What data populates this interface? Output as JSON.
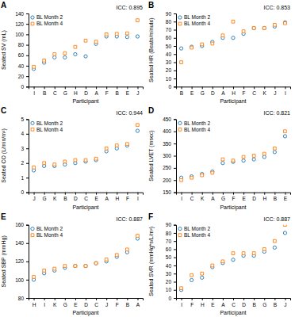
{
  "chart_data": [
    {
      "type": "scatter",
      "title": "A",
      "annotation": "ICC: 0.895",
      "x_label": "Participant",
      "y_label": "Seated SV (mL)",
      "categories": [
        "I",
        "B",
        "C",
        "G",
        "H",
        "D",
        "A",
        "F",
        "B",
        "E",
        "J"
      ],
      "series": [
        {
          "name": "BL Month 2",
          "marker": "circle",
          "values": [
            34,
            46,
            56,
            56,
            62,
            58,
            82,
            96,
            96,
            95,
            96
          ]
        },
        {
          "name": "BL Month 4",
          "marker": "square",
          "values": [
            38,
            50,
            62,
            64,
            76,
            88,
            86,
            100,
            101,
            102,
            127
          ]
        }
      ],
      "ylim": [
        0,
        140
      ],
      "yticks": [
        0,
        20,
        40,
        60,
        80,
        100,
        120,
        140
      ],
      "legend": "upper left",
      "grid": false
    },
    {
      "type": "scatter",
      "title": "B",
      "annotation": "ICC: 0.853",
      "x_label": "Participant",
      "y_label": "Seated HR (Beats/minute)",
      "categories": [
        "B",
        "E",
        "G",
        "D",
        "A",
        "H",
        "F",
        "C",
        "K",
        "J",
        "I"
      ],
      "series": [
        {
          "name": "BL Month 2",
          "marker": "circle",
          "values": [
            47,
            49,
            50,
            55,
            60,
            60,
            65,
            72,
            72,
            74,
            79
          ]
        },
        {
          "name": "BL Month 4",
          "marker": "square",
          "values": [
            30,
            48,
            52,
            53,
            63,
            80,
            68,
            72,
            72,
            76,
            78
          ]
        }
      ],
      "ylim": [
        0,
        90
      ],
      "yticks": [
        0,
        10,
        20,
        30,
        40,
        50,
        60,
        70,
        80,
        90
      ],
      "legend": "upper left",
      "grid": false
    },
    {
      "type": "scatter",
      "title": "C",
      "annotation": "ICC: 0.944",
      "x_label": "Participant",
      "y_label": "Seated CO (L/min/m²)",
      "categories": [
        "J",
        "G",
        "K",
        "B",
        "D",
        "C",
        "E",
        "A",
        "H",
        "F",
        "I"
      ],
      "series": [
        {
          "name": "BL Month 2",
          "marker": "circle",
          "values": [
            1.5,
            1.8,
            1.8,
            1.9,
            2.0,
            2.1,
            2.2,
            2.8,
            3.0,
            3.2,
            4.2
          ]
        },
        {
          "name": "BL Month 4",
          "marker": "square",
          "values": [
            1.7,
            2.0,
            1.9,
            2.1,
            2.2,
            2.2,
            2.3,
            3.0,
            3.2,
            3.3,
            4.6
          ]
        }
      ],
      "ylim": [
        0,
        5
      ],
      "yticks": [
        0,
        1,
        2,
        3,
        4,
        5
      ],
      "legend": "upper left",
      "grid": false
    },
    {
      "type": "scatter",
      "title": "D",
      "annotation": "ICC: 0.821",
      "x_label": "Participant",
      "y_label": "Seated LVET (msec)",
      "categories": [
        "I",
        "C",
        "K",
        "A",
        "G",
        "F",
        "E",
        "D",
        "H",
        "B",
        "E"
      ],
      "series": [
        {
          "name": "BL Month 2",
          "marker": "circle",
          "values": [
            210,
            215,
            225,
            235,
            270,
            275,
            280,
            285,
            295,
            315,
            380
          ]
        },
        {
          "name": "BL Month 4",
          "marker": "square",
          "values": [
            200,
            210,
            220,
            230,
            285,
            280,
            295,
            300,
            308,
            330,
            400
          ]
        }
      ],
      "ylim": [
        150,
        450
      ],
      "yticks": [
        150,
        200,
        250,
        300,
        350,
        400,
        450
      ],
      "legend": "upper left",
      "grid": false
    },
    {
      "type": "scatter",
      "title": "E",
      "annotation": "ICC: 0.887",
      "x_label": "Participant",
      "y_label": "Seated SBP (mmHg)",
      "categories": [
        "H",
        "I",
        "K",
        "G",
        "E",
        "D",
        "C",
        "J",
        "F",
        "B",
        "A"
      ],
      "series": [
        {
          "name": "BL Month 2",
          "marker": "circle",
          "values": [
            100,
            107,
            110,
            113,
            115,
            115,
            118,
            120,
            125,
            130,
            145
          ]
        },
        {
          "name": "BL Month 4",
          "marker": "square",
          "values": [
            103,
            110,
            112,
            115,
            115,
            115,
            118,
            122,
            127,
            133,
            148
          ]
        }
      ],
      "ylim": [
        80,
        160
      ],
      "yticks": [
        80,
        100,
        120,
        140,
        160
      ],
      "legend": "upper left",
      "grid": false
    },
    {
      "type": "scatter",
      "title": "F",
      "annotation": "ICC: 0.887",
      "x_label": "Participant",
      "y_label": "Seated SVR (mmHg*s/L/m²)",
      "categories": [
        "I",
        "F",
        "H",
        "E",
        "A",
        "C",
        "D",
        "B",
        "G",
        "B",
        "J"
      ],
      "series": [
        {
          "name": "BL Month 2",
          "marker": "circle",
          "values": [
            10,
            22,
            25,
            38,
            43,
            47,
            52,
            52,
            57,
            62,
            80
          ]
        },
        {
          "name": "BL Month 4",
          "marker": "square",
          "values": [
            12,
            28,
            30,
            40,
            45,
            55,
            55,
            55,
            60,
            70,
            90
          ]
        }
      ],
      "ylim": [
        0,
        90
      ],
      "yticks": [
        0,
        10,
        20,
        30,
        40,
        50,
        60,
        70,
        80,
        90
      ],
      "legend": "upper left",
      "grid": false
    }
  ]
}
